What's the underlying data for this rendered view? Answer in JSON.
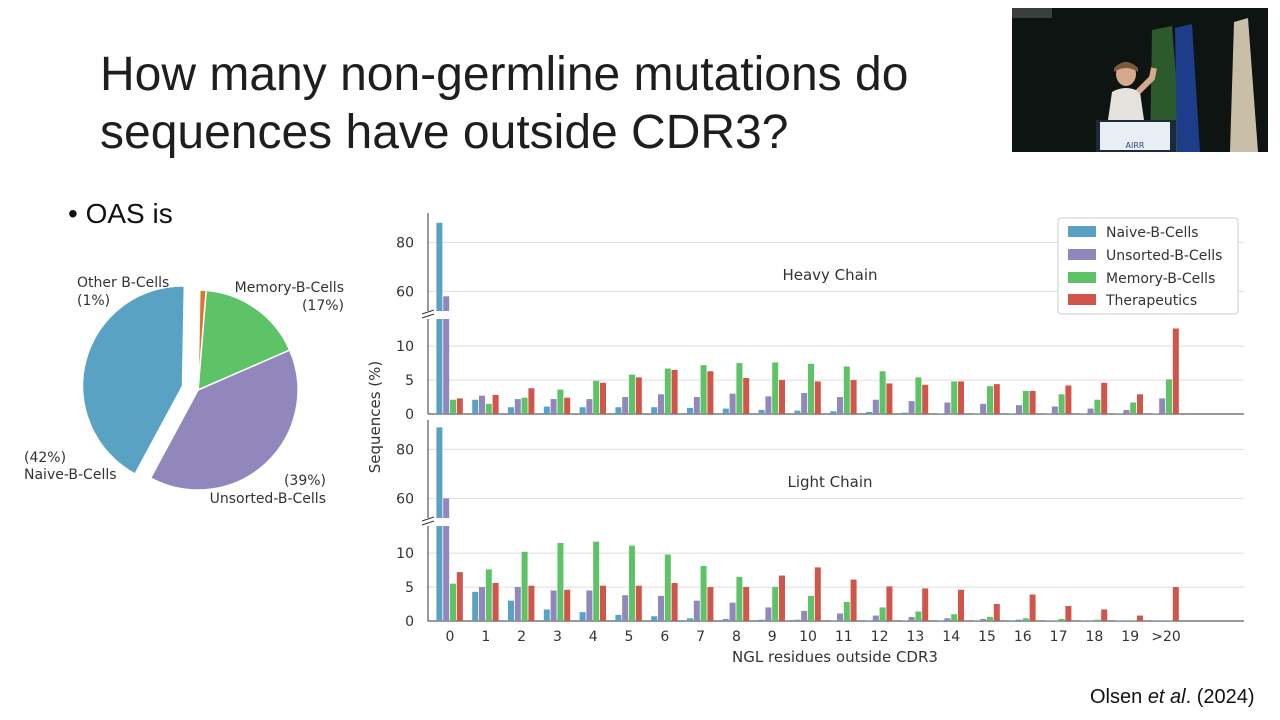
{
  "slide": {
    "title_line1": "How many non-germline mutations do",
    "title_line2": "sequences have outside CDR3?",
    "bullet": "OAS is",
    "citation_pre": "Olsen ",
    "citation_em": "et al",
    "citation_post": ". (2024)"
  },
  "video": {
    "podium_label": "AIRR"
  },
  "colors": {
    "naive": "#5aa2c4",
    "unsorted": "#9187bd",
    "memory": "#5ec266",
    "therapeutics": "#d0554a",
    "other": "#d9752f",
    "grid": "#dddddd"
  },
  "chart_data": [
    {
      "type": "pie",
      "slices": [
        {
          "label": "Naive-B-Cells",
          "pct_label": "(42%)",
          "value": 42
        },
        {
          "label": "Unsorted-B-Cells",
          "pct_label": "(39%)",
          "value": 39
        },
        {
          "label": "Memory-B-Cells",
          "pct_label": "(17%)",
          "value": 17
        },
        {
          "label": "Other B-Cells",
          "pct_label": "(1%)",
          "value": 1
        }
      ],
      "exploded": "Naive-B-Cells"
    },
    {
      "type": "bar",
      "ylabel": "Sequences (%)",
      "xlabel": "NGL residues outside CDR3",
      "categories": [
        "0",
        "1",
        "2",
        "3",
        "4",
        "5",
        "6",
        "7",
        "8",
        "9",
        "10",
        "11",
        "12",
        "13",
        "14",
        "15",
        "16",
        "17",
        "18",
        "19",
        ">20"
      ],
      "legend": [
        "Naive-B-Cells",
        "Unsorted-B-Cells",
        "Memory-B-Cells",
        "Therapeutics"
      ],
      "legend_position": "top-right",
      "broken_y_axis": true,
      "lower_ylim": [
        0,
        14
      ],
      "upper_ylim": [
        52,
        92
      ],
      "lower_yticks": [
        0,
        5,
        10
      ],
      "upper_yticks": [
        60,
        80
      ],
      "panels": [
        {
          "title": "Heavy Chain",
          "series": [
            {
              "name": "Naive-B-Cells",
              "values": [
                88,
                2.1,
                1.0,
                1.1,
                1.0,
                1.0,
                1.0,
                0.9,
                0.8,
                0.6,
                0.5,
                0.4,
                0.3,
                0.2,
                0.1,
                0.1,
                0.1,
                0.1,
                0.1,
                0.1,
                0.1
              ]
            },
            {
              "name": "Unsorted-B-Cells",
              "values": [
                58,
                2.7,
                2.2,
                2.2,
                2.2,
                2.5,
                2.9,
                2.5,
                3.0,
                2.6,
                3.1,
                2.5,
                2.1,
                1.9,
                1.7,
                1.5,
                1.3,
                1.1,
                0.8,
                0.6,
                2.3
              ]
            },
            {
              "name": "Memory-B-Cells",
              "values": [
                2.1,
                1.5,
                2.4,
                3.6,
                4.9,
                5.8,
                6.7,
                7.2,
                7.5,
                7.6,
                7.4,
                7.0,
                6.3,
                5.4,
                4.8,
                4.1,
                3.4,
                2.9,
                2.1,
                1.7,
                5.1
              ]
            },
            {
              "name": "Therapeutics",
              "values": [
                2.3,
                2.8,
                3.8,
                2.4,
                4.6,
                5.4,
                6.5,
                6.3,
                5.3,
                5.0,
                4.8,
                5.0,
                4.5,
                4.3,
                4.8,
                4.4,
                3.4,
                4.2,
                4.6,
                2.9,
                12.6
              ]
            }
          ]
        },
        {
          "title": "Light Chain",
          "series": [
            {
              "name": "Naive-B-Cells",
              "values": [
                89,
                4.3,
                3.0,
                1.7,
                1.3,
                0.9,
                0.7,
                0.4,
                0.3,
                0.2,
                0.2,
                0.1,
                0.1,
                0.1,
                0.1,
                0.1,
                0.1,
                0.1,
                0.1,
                0.1,
                0.1
              ]
            },
            {
              "name": "Unsorted-B-Cells",
              "values": [
                60,
                5.0,
                5.0,
                4.5,
                4.5,
                3.8,
                3.7,
                3.0,
                2.7,
                2.0,
                1.5,
                1.1,
                0.8,
                0.6,
                0.4,
                0.3,
                0.2,
                0.1,
                0.1,
                0.1,
                0.1
              ]
            },
            {
              "name": "Memory-B-Cells",
              "values": [
                5.5,
                7.6,
                10.2,
                11.5,
                11.7,
                11.1,
                9.8,
                8.1,
                6.5,
                5.0,
                3.7,
                2.8,
                2.0,
                1.4,
                1.0,
                0.6,
                0.4,
                0.3,
                0.2,
                0.1,
                0.1
              ]
            },
            {
              "name": "Therapeutics",
              "values": [
                7.2,
                5.6,
                5.2,
                4.6,
                5.2,
                5.2,
                5.6,
                5.0,
                5.0,
                6.7,
                7.9,
                6.1,
                5.1,
                4.8,
                4.6,
                2.5,
                3.9,
                2.2,
                1.7,
                0.8,
                5.0
              ]
            }
          ]
        }
      ]
    }
  ]
}
